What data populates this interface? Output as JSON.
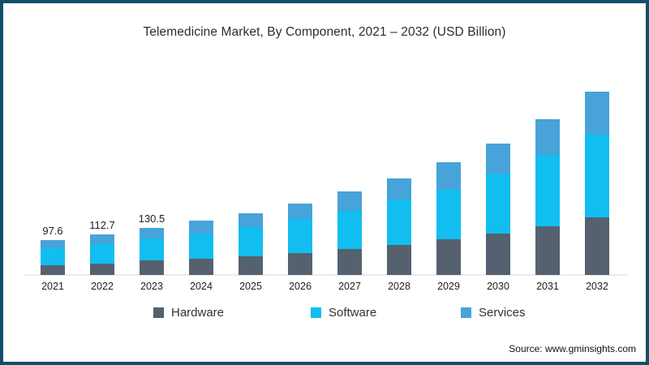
{
  "page": {
    "border_color": "#134f6d",
    "background_color": "#ffffff"
  },
  "chart_data": {
    "type": "bar",
    "stacked": true,
    "title": "Telemedicine Market, By Component, 2021 – 2032 (USD Billion)",
    "categories": [
      "2021",
      "2022",
      "2023",
      "2024",
      "2025",
      "2026",
      "2027",
      "2028",
      "2029",
      "2030",
      "2031",
      "2032"
    ],
    "series": [
      {
        "name": "Hardware",
        "color": "#55616f",
        "values": [
          28.0,
          32.5,
          40.0,
          45.5,
          52.5,
          61.5,
          71.5,
          84.0,
          99.0,
          114.5,
          135.5,
          161.5
        ]
      },
      {
        "name": "Software",
        "color": "#12bef0",
        "values": [
          47.0,
          54.0,
          62.0,
          70.0,
          81.0,
          94.0,
          107.0,
          126.0,
          139.0,
          168.0,
          199.5,
          230.0
        ]
      },
      {
        "name": "Services",
        "color": "#47a3d9",
        "values": [
          22.6,
          26.2,
          28.5,
          35.3,
          39.0,
          44.0,
          53.5,
          59.0,
          76.5,
          84.0,
          98.0,
          119.0
        ]
      }
    ],
    "totals": [
      97.6,
      112.7,
      130.5,
      150.8,
      172.5,
      199.5,
      232.0,
      269.0,
      314.5,
      366.5,
      433.0,
      510.5
    ],
    "bar_labels": [
      "97.6",
      "112.7",
      "130.5",
      "",
      "",
      "",
      "",
      "",
      "",
      "",
      "",
      ""
    ],
    "xlabel": "",
    "ylabel": "",
    "ylim": [
      0,
      520
    ],
    "grid": false,
    "legend_position": "bottom",
    "axis_line_color": "#ebebeb"
  },
  "legend": {
    "items": [
      {
        "label": "Hardware"
      },
      {
        "label": "Software"
      },
      {
        "label": "Services"
      }
    ]
  },
  "source": {
    "label": "Source: www.gminsights.com"
  }
}
